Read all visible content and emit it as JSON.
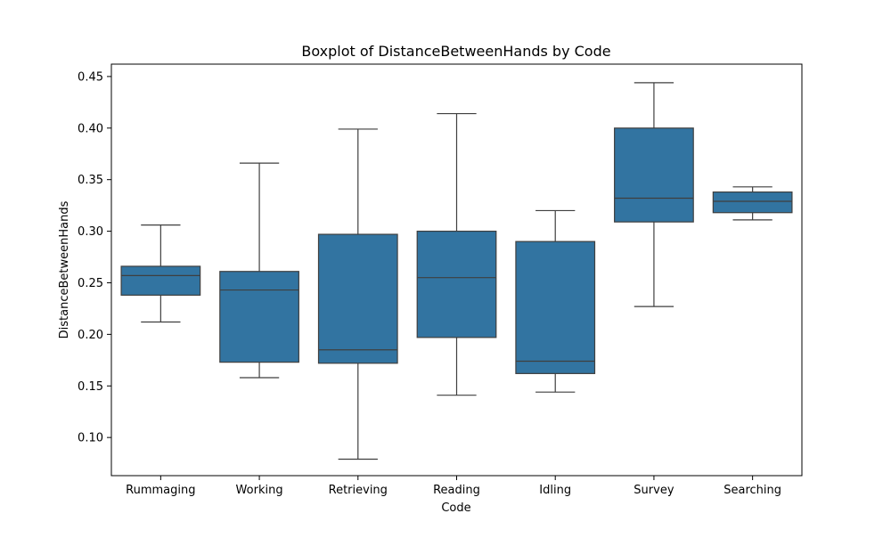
{
  "chart_data": {
    "type": "boxplot",
    "title": "Boxplot of DistanceBetweenHands by Code",
    "xlabel": "Code",
    "ylabel": "DistanceBetweenHands",
    "ylim": [
      0.063,
      0.462
    ],
    "yticks": [
      "0.10",
      "0.15",
      "0.20",
      "0.25",
      "0.30",
      "0.35",
      "0.40",
      "0.45"
    ],
    "grid": false,
    "box_color": "#3274a1",
    "line_color": "#3f3f3f",
    "categories": [
      "Rummaging",
      "Working",
      "Retrieving",
      "Reading",
      "Idling",
      "Survey",
      "Searching"
    ],
    "boxes": [
      {
        "category": "Rummaging",
        "whisker_low": 0.212,
        "q1": 0.238,
        "median": 0.257,
        "q3": 0.266,
        "whisker_high": 0.306
      },
      {
        "category": "Working",
        "whisker_low": 0.158,
        "q1": 0.173,
        "median": 0.243,
        "q3": 0.261,
        "whisker_high": 0.366
      },
      {
        "category": "Retrieving",
        "whisker_low": 0.079,
        "q1": 0.172,
        "median": 0.185,
        "q3": 0.297,
        "whisker_high": 0.399
      },
      {
        "category": "Reading",
        "whisker_low": 0.141,
        "q1": 0.197,
        "median": 0.255,
        "q3": 0.3,
        "whisker_high": 0.414
      },
      {
        "category": "Idling",
        "whisker_low": 0.144,
        "q1": 0.162,
        "median": 0.174,
        "q3": 0.29,
        "whisker_high": 0.32
      },
      {
        "category": "Survey",
        "whisker_low": 0.227,
        "q1": 0.309,
        "median": 0.332,
        "q3": 0.4,
        "whisker_high": 0.444
      },
      {
        "category": "Searching",
        "whisker_low": 0.311,
        "q1": 0.318,
        "median": 0.329,
        "q3": 0.338,
        "whisker_high": 0.343
      }
    ]
  }
}
